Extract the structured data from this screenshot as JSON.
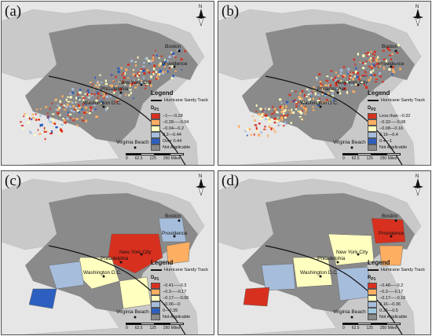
{
  "panels": [
    {
      "label": "(a)",
      "style": "dots",
      "variable": "D",
      "variable_sub": "P1",
      "legend_title": "Legend",
      "track_label": "Hurricane Sandy Track",
      "legend_items": [
        {
          "label": "−1—−0.28",
          "color": "#d7301f"
        },
        {
          "label": "−0.28—−0.04",
          "color": "#fdae61"
        },
        {
          "label": "−0.04—0.2",
          "color": "#ffffbf"
        },
        {
          "label": "0.2—0.44",
          "color": "#a6bddb"
        },
        {
          "label": "Over 0.44",
          "color": "#2c5fbf"
        },
        {
          "label": "Not Applicable",
          "color": "#8a8a8a"
        }
      ]
    },
    {
      "label": "(b)",
      "style": "dots",
      "variable": "D",
      "variable_sub": "P2",
      "legend_title": "Legend",
      "track_label": "Hurricane Sandy Track",
      "legend_items": [
        {
          "label": "Less than −0.32",
          "color": "#d7301f"
        },
        {
          "label": "−0.32—−0.08",
          "color": "#fdae61"
        },
        {
          "label": "−0.08—0.16",
          "color": "#ffffbf"
        },
        {
          "label": "0.16—0.4",
          "color": "#a6bddb"
        },
        {
          "label": "0.4—1",
          "color": "#2c5fbf"
        },
        {
          "label": "Not Applicable",
          "color": "#8a8a8a"
        }
      ]
    },
    {
      "label": "(c)",
      "style": "regions_c",
      "variable": "D",
      "variable_sub": "P1",
      "legend_title": "Legend",
      "track_label": "Hurricane Sandy Track",
      "legend_items": [
        {
          "label": "−0.41—−0.3",
          "color": "#d7301f"
        },
        {
          "label": "−0.3—−0.17",
          "color": "#fdae61"
        },
        {
          "label": "−0.17—−0.06",
          "color": "#ffffbf"
        },
        {
          "label": "−0.06—0",
          "color": "#a6bddb"
        },
        {
          "label": "0—0.35",
          "color": "#2c5fbf"
        },
        {
          "label": "Not Applicable",
          "color": "#8a8a8a"
        }
      ]
    },
    {
      "label": "(d)",
      "style": "regions_d",
      "variable": "R",
      "variable_sub": "P1",
      "legend_title": "Legend",
      "track_label": "Hurricane Sandy Track",
      "legend_items": [
        {
          "label": "−0.48—−0.2",
          "color": "#d7301f"
        },
        {
          "label": "−0.2—−0.17",
          "color": "#fdae61"
        },
        {
          "label": "−0.17—−0.16",
          "color": "#ffffbf"
        },
        {
          "label": "0.16—0.36",
          "color": "#a6bddb"
        },
        {
          "label": "0.36—0.5",
          "color": "#9ecae1"
        },
        {
          "label": "Not Applicable",
          "color": "#8a8a8a"
        }
      ]
    }
  ],
  "cities": {
    "boston": "Boston",
    "providence": "Providence",
    "new_york": "New York City",
    "philadelphia": "Philadelphia",
    "washington": "Washington D.C.",
    "virginia_beach": "Virginia Beach"
  },
  "north_label": "N",
  "scale": {
    "ticks": [
      "0",
      "62.5",
      "125",
      "250 Miles"
    ]
  },
  "colors": {
    "water": "#c9c9c9",
    "land": "#e6e6e6",
    "not_applicable": "#8a8a8a"
  }
}
